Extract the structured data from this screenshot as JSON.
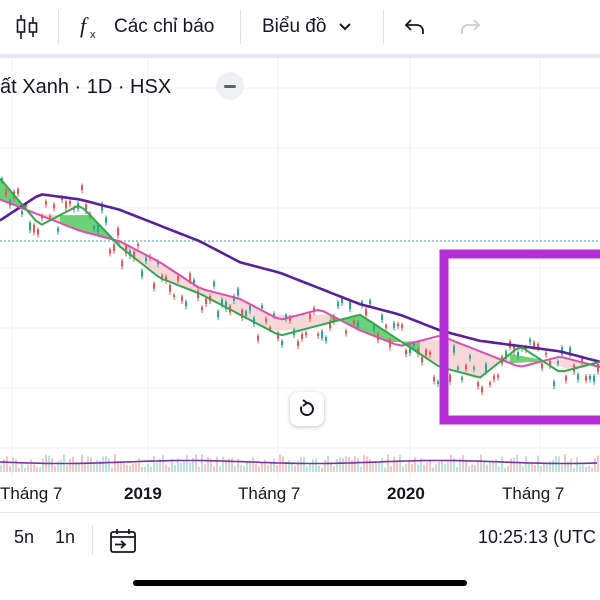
{
  "toolbar": {
    "indicators_label": "Các chỉ báo",
    "chart_type_label": "Biểu đồ",
    "icons": [
      "candles-icon",
      "fx-icon",
      "chevron-down-icon",
      "undo-icon",
      "redo-icon"
    ]
  },
  "legend": {
    "title": "ất Xanh · 1D · HSX"
  },
  "x_axis": {
    "labels": [
      "Tháng 7",
      "2019",
      "Tháng 7",
      "2020",
      "Tháng 7"
    ]
  },
  "bottom_bar": {
    "ranges": [
      "5n",
      "1n"
    ],
    "time": "10:25:13 (UTC"
  },
  "colors": {
    "highlight_box": "#b62fd6",
    "ma_long": "#5b1f9e",
    "ma_mid": "#e24bb0",
    "ma_short": "#2fa84f",
    "cloud_green": "#3cc24a",
    "cloud_pink": "#f3c7c7",
    "candle_up": "#26a69a",
    "candle_down": "#ef5350",
    "dotted_line": "#2aa7a2"
  },
  "chart_data": {
    "type": "line",
    "title": "",
    "x_tick_labels": [
      "Tháng 7",
      "2019",
      "Tháng 7",
      "2020",
      "Tháng 7"
    ],
    "y_tick_labels": [],
    "grid": true,
    "series": [
      {
        "values": [
          8.4,
          8.9,
          8.8,
          8.6,
          8.3,
          8.0,
          7.6,
          7.4,
          7.1,
          6.8,
          6.6,
          6.3,
          6.1,
          6.0,
          5.9,
          5.7
        ]
      },
      {
        "values": [
          8.8,
          8.5,
          8.2,
          8.0,
          7.6,
          7.1,
          6.9,
          6.5,
          6.7,
          6.3,
          6.0,
          6.2,
          5.9,
          5.6,
          5.8,
          5.6
        ]
      },
      {
        "values": [
          9.2,
          8.3,
          8.7,
          7.9,
          7.3,
          7.0,
          6.6,
          6.2,
          6.4,
          6.6,
          6.1,
          5.6,
          5.4,
          6.0,
          5.5,
          5.7
        ]
      }
    ]
  }
}
